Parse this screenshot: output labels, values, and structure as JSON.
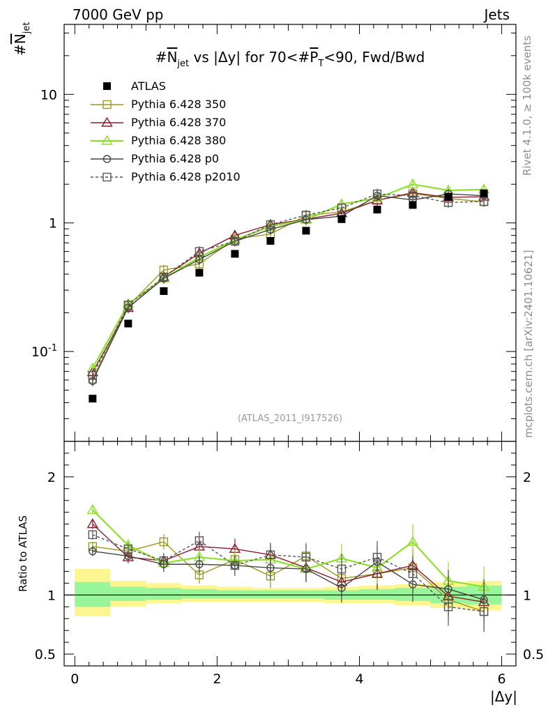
{
  "header": {
    "left": "7000 GeV pp",
    "right": "Jets"
  },
  "side_labels": {
    "rivet": "Rivet 4.1.0, ≥ 100k events",
    "mcplots": "mcplots.cern.ch [arXiv:2401.10621]"
  },
  "chart_data": {
    "type": "scatter",
    "title": "#N̅jet vs |Δy| for 70<#P̅T<90, Fwd/Bwd",
    "title_parts": {
      "a": "#",
      "b": "N",
      "c": "jet",
      "d": " vs |Δy| for 70<#",
      "e": "P",
      "f": "T",
      "g": "<90, Fwd/Bwd"
    },
    "ylabel_parts": {
      "a": "#",
      "b": "N",
      "c": "jet"
    },
    "xlabel": "|Δy|",
    "ratio_ylabel": "Ratio to ATLAS",
    "analysis_tag": "(ATLAS_2011_I917526)",
    "xlim": [
      -0.15,
      6.2
    ],
    "ylim_log": [
      0.02,
      35
    ],
    "ratio_ylim": [
      0.4,
      2.3
    ],
    "x_ticks": [
      "0",
      "2",
      "4",
      "6"
    ],
    "y_ticks_main": [
      "10^-1",
      "1",
      "10"
    ],
    "y_ticks_ratio": [
      "0.5",
      "1",
      "2"
    ],
    "x": [
      0.25,
      0.75,
      1.25,
      1.75,
      2.25,
      2.75,
      3.25,
      3.75,
      4.25,
      4.75,
      5.25,
      5.75
    ],
    "bin_edges": [
      0,
      0.5,
      1,
      1.5,
      2,
      2.5,
      3,
      3.5,
      4,
      4.5,
      5,
      5.5,
      6
    ],
    "atlas": [
      0.043,
      0.165,
      0.295,
      0.41,
      0.575,
      0.725,
      0.87,
      1.07,
      1.27,
      1.38,
      1.6,
      1.7
    ],
    "band_yellow": [
      [
        0.82,
        1.22
      ],
      [
        0.9,
        1.12
      ],
      [
        0.93,
        1.1
      ],
      [
        0.94,
        1.08
      ],
      [
        0.94,
        1.07
      ],
      [
        0.94,
        1.06
      ],
      [
        0.94,
        1.06
      ],
      [
        0.93,
        1.07
      ],
      [
        0.93,
        1.08
      ],
      [
        0.91,
        1.09
      ],
      [
        0.89,
        1.11
      ],
      [
        0.87,
        1.12
      ]
    ],
    "band_green": [
      [
        0.9,
        1.11
      ],
      [
        0.95,
        1.07
      ],
      [
        0.96,
        1.06
      ],
      [
        0.97,
        1.05
      ],
      [
        0.97,
        1.04
      ],
      [
        0.97,
        1.04
      ],
      [
        0.97,
        1.04
      ],
      [
        0.96,
        1.04
      ],
      [
        0.96,
        1.05
      ],
      [
        0.95,
        1.06
      ],
      [
        0.93,
        1.07
      ],
      [
        0.92,
        1.08
      ]
    ],
    "series": [
      {
        "name": "Pythia 6.428 350",
        "color": "#9a9a1e",
        "marker": "square",
        "dash": "",
        "values": [
          0.061,
          0.226,
          0.43,
          0.48,
          0.75,
          0.82,
          1.14,
          1.22,
          1.5,
          1.69,
          1.55,
          1.46
        ],
        "ratio": [
          1.41,
          1.37,
          1.45,
          1.17,
          1.3,
          1.16,
          1.33,
          1.14,
          1.18,
          1.23,
          0.96,
          0.86
        ]
      },
      {
        "name": "Pythia 6.428 370",
        "color": "#8b1a2e",
        "marker": "triangle",
        "dash": "",
        "values": [
          0.069,
          0.218,
          0.38,
          0.58,
          0.8,
          0.97,
          1.07,
          1.19,
          1.5,
          1.72,
          1.58,
          1.6
        ],
        "ratio": [
          1.6,
          1.32,
          1.29,
          1.41,
          1.39,
          1.34,
          1.23,
          1.11,
          1.18,
          1.25,
          0.99,
          0.94
        ]
      },
      {
        "name": "Pythia 6.428 380",
        "color": "#8ee02a",
        "marker": "triangle",
        "dash": "",
        "values": [
          0.074,
          0.235,
          0.37,
          0.54,
          0.74,
          0.94,
          1.06,
          1.4,
          1.56,
          2.0,
          1.79,
          1.82
        ],
        "ratio": [
          1.72,
          1.42,
          1.27,
          1.32,
          1.29,
          1.3,
          1.22,
          1.31,
          1.23,
          1.45,
          1.12,
          1.07
        ]
      },
      {
        "name": "Pythia 6.428 p0",
        "color": "#444444",
        "marker": "circle",
        "dash": "",
        "values": [
          0.059,
          0.22,
          0.37,
          0.52,
          0.72,
          0.89,
          1.06,
          1.13,
          1.63,
          1.51,
          1.68,
          1.63
        ],
        "ratio": [
          1.37,
          1.33,
          1.26,
          1.26,
          1.25,
          1.23,
          1.22,
          1.06,
          1.28,
          1.09,
          1.05,
          0.96
        ]
      },
      {
        "name": "Pythia 6.428 p2010",
        "color": "#555555",
        "marker": "square",
        "dash": "4,3",
        "values": [
          0.065,
          0.23,
          0.38,
          0.6,
          0.72,
          0.97,
          1.15,
          1.31,
          1.68,
          1.63,
          1.44,
          1.47
        ],
        "ratio": [
          1.51,
          1.39,
          1.29,
          1.46,
          1.25,
          1.34,
          1.32,
          1.22,
          1.32,
          1.18,
          0.9,
          0.86
        ]
      }
    ]
  }
}
